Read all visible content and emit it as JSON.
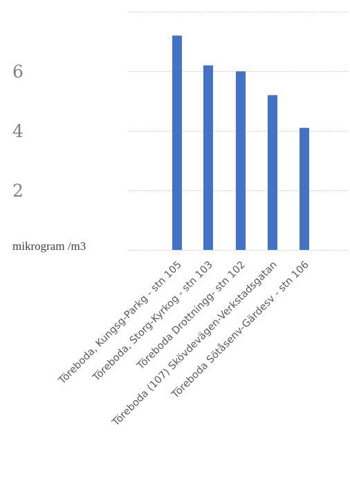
{
  "chart_data": {
    "type": "bar",
    "categories": [
      "Töreboda, Kungsg-Parkg - stn 105",
      "Töreboda, Storg-Kyrkog - stn 103",
      "Töreboda Drottningg- stn 102",
      "Töreboda (107) Skövdevägen-Verkstadsgatan",
      "Töreboda Sötåsenv-Gärdesv - stn 106"
    ],
    "values": [
      7.2,
      6.2,
      6.0,
      5.2,
      4.1
    ],
    "ylabel": "mikrogram /m3",
    "yticks": [
      "2",
      "4",
      "6"
    ],
    "ylim": [
      0,
      8
    ],
    "grid": true,
    "bar_color": "#4472c4",
    "legend": "none"
  }
}
